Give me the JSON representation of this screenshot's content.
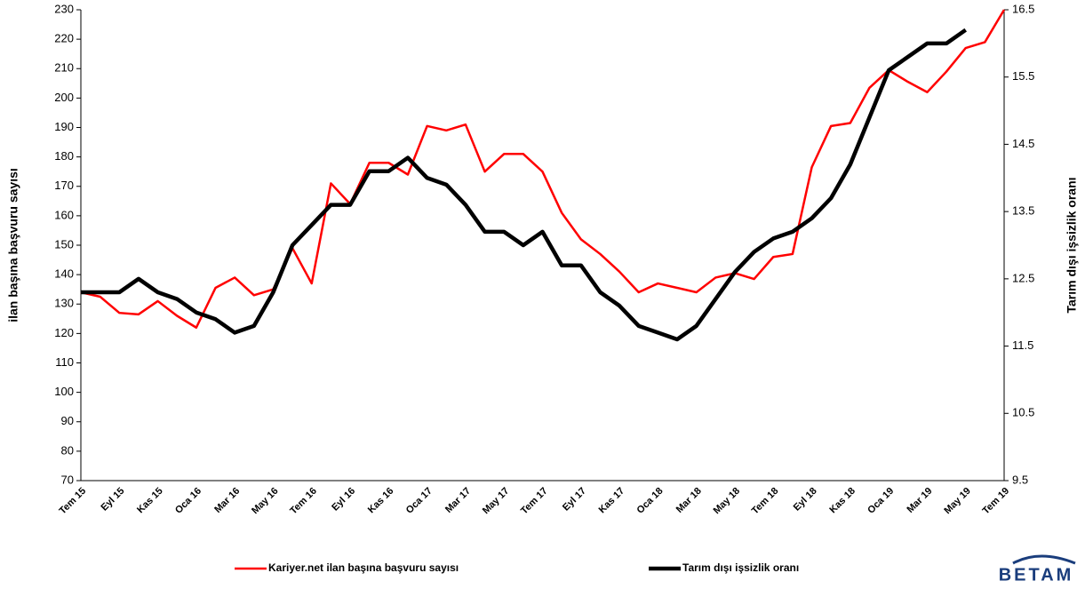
{
  "chart_data": {
    "type": "line",
    "y_label": "ilan başına başvuru sayısı",
    "y2_label": "Tarım dışı işsizlik oranı",
    "categories": [
      "Tem 15",
      null,
      "Eyl 15",
      null,
      "Kas 15",
      null,
      "Oca 16",
      null,
      "Mar 16",
      null,
      "May 16",
      null,
      "Tem 16",
      null,
      "Eyl 16",
      null,
      "Kas 16",
      null,
      "Oca 17",
      null,
      "Mar 17",
      null,
      "May 17",
      null,
      "Tem 17",
      null,
      "Eyl 17",
      null,
      "Kas 17",
      null,
      "Oca 18",
      null,
      "Mar 18",
      null,
      "May 18",
      null,
      "Tem 18",
      null,
      "Eyl 18",
      null,
      "Kas 18",
      null,
      "Oca 19",
      null,
      "Mar 19",
      null,
      "May 19",
      null,
      "Tem 19"
    ],
    "series": [
      {
        "name": "Kariyer.net ilan başına başvuru sayısı",
        "color": "#ff0000",
        "width": 2.5,
        "values": [
          134,
          132.5,
          127,
          126.5,
          131,
          126,
          122,
          135.5,
          139,
          133,
          135,
          149,
          137,
          171,
          164,
          178,
          178,
          174,
          190.5,
          189,
          191,
          175,
          181,
          181,
          175,
          161,
          152,
          147,
          141,
          134,
          137,
          135.5,
          134,
          139,
          140.5,
          138.5,
          146,
          147,
          176.5,
          190.5,
          191.5,
          203.5,
          209.5,
          205.5,
          202,
          209,
          217,
          219,
          230
        ]
      },
      {
        "name": "Tarım dışı işsizlik oranı",
        "color": "#000000",
        "width": 4.5,
        "axis": "y2",
        "values": [
          12.3,
          12.3,
          12.3,
          12.5,
          12.3,
          12.2,
          12.0,
          11.9,
          11.7,
          11.8,
          12.3,
          13.0,
          13.3,
          13.6,
          13.6,
          14.1,
          14.1,
          14.3,
          14.0,
          13.9,
          13.6,
          13.2,
          13.2,
          13.0,
          13.2,
          12.7,
          12.7,
          12.3,
          12.1,
          11.8,
          11.7,
          11.6,
          11.8,
          12.2,
          12.6,
          12.9,
          13.1,
          13.2,
          13.4,
          13.7,
          14.2,
          14.9,
          15.6,
          15.8,
          16.0,
          16.0,
          16.2,
          null,
          null
        ]
      }
    ],
    "ylim": [
      70,
      230
    ],
    "yticks": [
      70,
      80,
      90,
      100,
      110,
      120,
      130,
      140,
      150,
      160,
      170,
      180,
      190,
      200,
      210,
      220,
      230
    ],
    "y2lim": [
      9.5,
      16.5
    ],
    "y2ticks": [
      9.5,
      10.5,
      11.5,
      12.5,
      13.5,
      14.5,
      15.5,
      16.5
    ],
    "grid": false,
    "legend": "bottom",
    "logo": "BETAM"
  }
}
